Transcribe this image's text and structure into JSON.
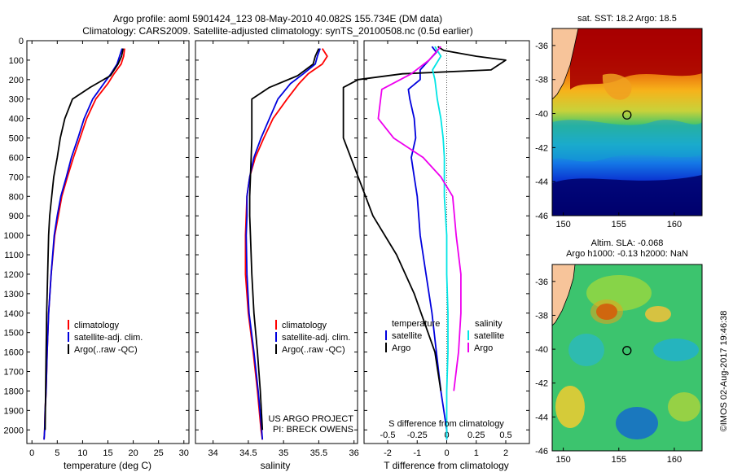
{
  "title": {
    "line1": "Argo profile: aoml 5901424_123 08-May-2010 40.082S 155.734E (DM data)",
    "line2": "Climatology: CARS2009. Satellite-adjusted climatology: synTS_20100508.nc (0.5d earlier)"
  },
  "credit": {
    "project": "US ARGO PROJECT",
    "pi": "PI: BRECK OWENS",
    "stamp": "©IMOS 02-Aug-2017 19:46:38"
  },
  "colors": {
    "climatology": "#ff0000",
    "satellite": "#0000dd",
    "argo": "#000000",
    "sal_satellite": "#00e5e5",
    "sal_argo": "#ee00ee"
  },
  "chart_data": [
    {
      "type": "line",
      "id": "temperature",
      "xlabel": "temperature (deg C)",
      "ylabel": "",
      "xlim": [
        -1,
        31
      ],
      "ylim": [
        2070,
        0
      ],
      "xticks": [
        0,
        5,
        10,
        15,
        20,
        25,
        30
      ],
      "yticks": [
        0,
        100,
        200,
        300,
        400,
        500,
        600,
        700,
        800,
        900,
        1000,
        1100,
        1200,
        1300,
        1400,
        1500,
        1600,
        1700,
        1800,
        1900,
        2000
      ],
      "legend": [
        "climatology",
        "satellite-adj. clim.",
        "Argo(..raw -QC)"
      ],
      "series": [
        {
          "name": "climatology",
          "color": "#ff0000",
          "x": [
            18.3,
            18.1,
            17.6,
            16.2,
            15.0,
            12.6,
            10.8,
            9.5,
            8.2,
            7.0,
            5.9,
            5.2,
            4.5,
            3.8,
            3.3,
            3.0,
            2.8,
            2.6,
            2.5,
            2.4
          ],
          "y": [
            40,
            80,
            120,
            170,
            220,
            300,
            400,
            500,
            600,
            700,
            800,
            900,
            1000,
            1200,
            1400,
            1600,
            1800,
            1900,
            2000,
            2050
          ]
        },
        {
          "name": "satellite-adj. clim.",
          "color": "#0000dd",
          "x": [
            17.8,
            17.3,
            16.8,
            15.6,
            14.2,
            12.0,
            10.3,
            9.1,
            7.8,
            6.8,
            5.7,
            5.0,
            4.4,
            3.8,
            3.3,
            3.0,
            2.8,
            2.6,
            2.5,
            2.4
          ],
          "y": [
            40,
            80,
            120,
            170,
            220,
            300,
            400,
            500,
            600,
            700,
            800,
            900,
            1000,
            1200,
            1400,
            1600,
            1800,
            1900,
            2000,
            2050
          ]
        },
        {
          "name": "Argo(..raw -QC)",
          "color": "#000000",
          "x": [
            18.0,
            17.7,
            17.0,
            15.5,
            11.5,
            8.0,
            6.5,
            5.6,
            5.0,
            4.3,
            3.9,
            3.5,
            3.3,
            3.1,
            2.9,
            2.8,
            2.7,
            2.6
          ],
          "y": [
            40,
            80,
            120,
            180,
            240,
            300,
            400,
            500,
            600,
            700,
            800,
            900,
            1000,
            1200,
            1400,
            1600,
            1800,
            2000
          ]
        }
      ]
    },
    {
      "type": "line",
      "id": "salinity",
      "xlabel": "salinity",
      "ylabel": "",
      "xlim": [
        33.75,
        36.05
      ],
      "ylim": [
        2070,
        0
      ],
      "xticks": [
        34,
        34.5,
        35,
        35.5,
        36
      ],
      "xticklabels": [
        "34",
        "34.5",
        "35",
        "35.5",
        "36"
      ],
      "legend": [
        "climatology",
        "satellite-adj. clim.",
        "Argo(..raw -QC)"
      ],
      "series": [
        {
          "name": "climatology",
          "color": "#ff0000",
          "x": [
            35.55,
            35.62,
            35.55,
            35.35,
            35.22,
            35.05,
            34.85,
            34.72,
            34.6,
            34.52,
            34.48,
            34.47,
            34.46,
            34.46,
            34.5,
            34.57,
            34.63,
            34.68,
            34.7
          ],
          "y": [
            40,
            80,
            120,
            170,
            220,
            300,
            400,
            500,
            600,
            700,
            800,
            900,
            1000,
            1200,
            1400,
            1600,
            1800,
            2000,
            2050
          ]
        },
        {
          "name": "satellite-adj. clim.",
          "color": "#0000dd",
          "x": [
            35.52,
            35.48,
            35.45,
            35.28,
            35.1,
            34.92,
            34.8,
            34.68,
            34.58,
            34.52,
            34.48,
            34.48,
            34.47,
            34.48,
            34.51,
            34.58,
            34.64,
            34.69,
            34.7
          ],
          "y": [
            40,
            80,
            120,
            170,
            220,
            300,
            400,
            500,
            600,
            700,
            800,
            900,
            1000,
            1200,
            1400,
            1600,
            1800,
            2000,
            2050
          ]
        },
        {
          "name": "Argo(..raw -QC)",
          "color": "#000000",
          "x": [
            35.5,
            35.45,
            35.42,
            35.2,
            34.8,
            34.55,
            34.55,
            34.55,
            34.54,
            34.53,
            34.52,
            34.52,
            34.53,
            34.55,
            34.58,
            34.63,
            34.67,
            34.7
          ],
          "y": [
            40,
            80,
            120,
            180,
            240,
            300,
            400,
            500,
            600,
            700,
            800,
            900,
            1000,
            1200,
            1400,
            1600,
            1800,
            2000
          ]
        }
      ]
    },
    {
      "type": "line",
      "id": "differences",
      "xlabel": "T difference from climatology",
      "xlabel2": "S difference from climatology",
      "xlim": [
        -2.8,
        2.8
      ],
      "ylim": [
        2070,
        0
      ],
      "xticks": [
        -2,
        -1,
        0,
        1,
        2
      ],
      "xticks2": [
        -0.5,
        -0.25,
        0,
        0.25,
        0.5
      ],
      "xticklabels2": [
        "-0.5",
        "-0.25",
        "0",
        "0.25",
        "0.5"
      ],
      "legend_headers": [
        "temperature",
        "salinity"
      ],
      "legend": [
        "satellite",
        "Argo",
        "satellite",
        "Argo"
      ],
      "series": [
        {
          "name": "satellite",
          "variable": "temperature",
          "color": "#0000dd",
          "x": [
            -0.5,
            -0.35,
            -0.6,
            -0.9,
            -0.9,
            -1.3,
            -1.25,
            -1.1,
            -1.05,
            -1.2,
            -1.1,
            -1.0,
            -0.9,
            -0.7,
            -0.5,
            -0.35,
            -0.2,
            -0.1,
            0.0,
            0.0
          ],
          "y": [
            30,
            60,
            100,
            150,
            200,
            250,
            300,
            400,
            500,
            600,
            700,
            800,
            1000,
            1200,
            1400,
            1600,
            1800,
            1900,
            2000,
            2050
          ]
        },
        {
          "name": "Argo",
          "variable": "temperature",
          "color": "#000000",
          "x": [
            -0.3,
            -0.1,
            1.0,
            2.0,
            1.5,
            -1.5,
            -3.0,
            -3.5,
            -3.5,
            -3.0,
            -2.5,
            -1.7,
            -1.1,
            -0.4,
            -0.2
          ],
          "y": [
            30,
            50,
            80,
            100,
            150,
            170,
            200,
            240,
            500,
            700,
            900,
            1100,
            1300,
            1600,
            1800
          ]
        },
        {
          "name": "satellite",
          "variable": "salinity",
          "color": "#00e5e5",
          "x": [
            -0.1,
            -0.05,
            -0.12,
            -0.1,
            -0.08,
            -0.05,
            -0.03,
            -0.02,
            -0.02,
            0.0,
            0.0,
            0.01,
            0.01,
            0.0,
            0.0
          ],
          "y": [
            30,
            80,
            150,
            200,
            300,
            400,
            500,
            600,
            800,
            1000,
            1200,
            1400,
            1600,
            1800,
            2050
          ]
        },
        {
          "name": "Argo",
          "variable": "salinity",
          "color": "#ee00ee",
          "x": [
            -0.05,
            -0.15,
            -0.3,
            -0.55,
            -0.58,
            -0.45,
            -0.2,
            -0.05,
            0.05,
            0.08,
            0.12,
            0.12,
            0.1,
            0.06
          ],
          "y": [
            30,
            100,
            170,
            250,
            400,
            500,
            600,
            700,
            800,
            1000,
            1200,
            1400,
            1600,
            1800
          ]
        }
      ]
    },
    {
      "type": "heatmap",
      "id": "sst-map",
      "title": "sat. SST: 18.2 Argo: 18.5",
      "xlim": [
        149,
        162.5
      ],
      "ylim": [
        -46,
        -35
      ],
      "xticks": [
        150,
        155,
        160
      ],
      "yticks": [
        -36,
        -38,
        -40,
        -42,
        -44,
        -46
      ],
      "marker": {
        "lon": 155.734,
        "lat": -40.082
      }
    },
    {
      "type": "heatmap",
      "id": "sla-map",
      "title": "Altim. SLA: -0.068",
      "subtitle": "Argo h1000: -0.13 h2000: NaN",
      "xlim": [
        149,
        162.5
      ],
      "ylim": [
        -46,
        -35
      ],
      "xticks": [
        150,
        155,
        160
      ],
      "yticks": [
        -36,
        -38,
        -40,
        -42,
        -44,
        -46
      ],
      "marker": {
        "lon": 155.734,
        "lat": -40.082
      }
    }
  ]
}
